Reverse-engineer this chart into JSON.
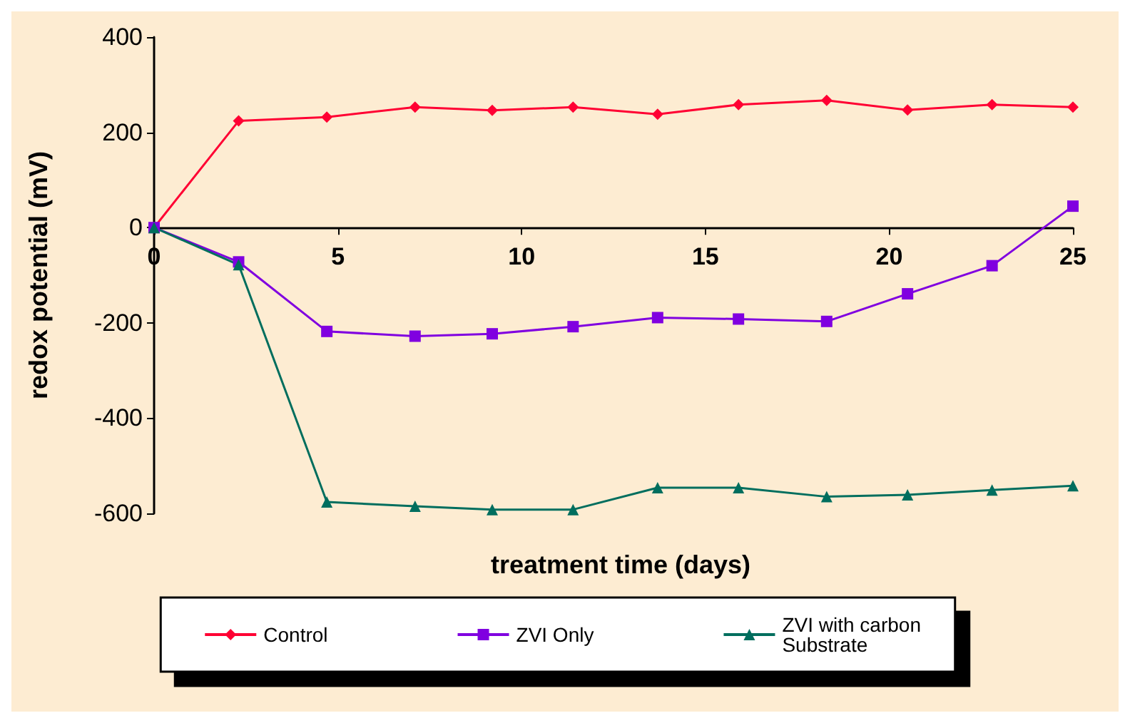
{
  "chart_data": {
    "type": "line",
    "xlabel": "treatment time (days)",
    "ylabel": "redox potential (mV)",
    "xlim": [
      0,
      25
    ],
    "xticks": [
      0,
      5,
      10,
      15,
      20,
      25
    ],
    "ylim": [
      -600,
      400
    ],
    "yticks": [
      -600,
      -400,
      -200,
      0,
      200,
      400
    ],
    "x": [
      0,
      2.3,
      4.7,
      7.1,
      9.2,
      11.4,
      13.7,
      15.9,
      18.3,
      20.5,
      22.8,
      25
    ],
    "grid": false,
    "legend": "bottom",
    "line_style": "solid",
    "series": [
      {
        "name": "Control",
        "color": "#ff0033",
        "marker": "diamond",
        "values": [
          0,
          224,
          232,
          253,
          246,
          253,
          238,
          258,
          267,
          247,
          258,
          253
        ]
      },
      {
        "name": "ZVI Only",
        "color": "#8000e0",
        "marker": "square",
        "values": [
          0,
          -72,
          -218,
          -228,
          -223,
          -208,
          -189,
          -192,
          -197,
          -139,
          -80,
          45
        ]
      },
      {
        "name": "ZVI with carbon Substrate",
        "color": "#006e5e",
        "marker": "triangle",
        "values": [
          0,
          -78,
          -576,
          -585,
          -592,
          -592,
          -546,
          -546,
          -565,
          -561,
          -551,
          -542
        ]
      }
    ]
  }
}
